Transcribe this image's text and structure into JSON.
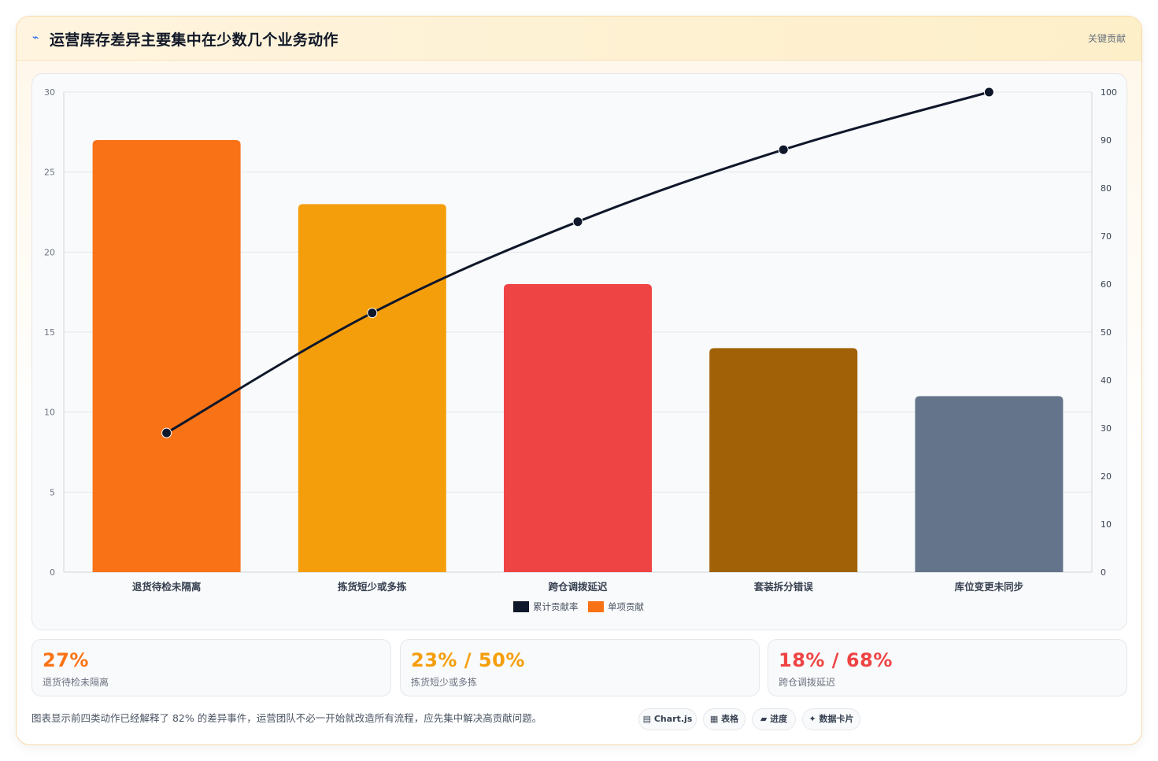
{
  "header": {
    "icon": "⌁",
    "icon_name": "spark-icon",
    "title": "运营库存差异主要集中在少数几个业务动作",
    "tag": "关键贡献"
  },
  "chart_data": {
    "type": "bar",
    "categories": [
      "退货待检未隔离",
      "拣货短少或多拣",
      "跨仓调拨延迟",
      "套装拆分错误",
      "库位变更未同步"
    ],
    "series": [
      {
        "name": "单项贡献",
        "type": "bar",
        "axis": "left",
        "values": [
          27,
          23,
          18,
          14,
          11
        ],
        "colors": [
          "#f97316",
          "#f59e0b",
          "#ef4444",
          "#a16207",
          "#64748b"
        ]
      },
      {
        "name": "累计贡献率",
        "type": "line",
        "axis": "right",
        "values": [
          29,
          54,
          73,
          88,
          100
        ],
        "color": "#0f172a"
      }
    ],
    "ylim_left": [
      0,
      30
    ],
    "yticks_left": [
      0,
      5,
      10,
      15,
      20,
      25,
      30
    ],
    "ylim_right": [
      0,
      100
    ],
    "yticks_right": [
      0,
      10,
      20,
      30,
      40,
      50,
      60,
      70,
      80,
      90,
      100
    ],
    "grid": true,
    "legend": [
      {
        "label": "累计贡献率",
        "color": "#0f172a"
      },
      {
        "label": "单项贡献",
        "color": "#f97316"
      }
    ],
    "legend_position": "bottom"
  },
  "stats": [
    {
      "value": "27%",
      "label": "退货待检未隔离",
      "color": "#f97316"
    },
    {
      "value": "23% / 50%",
      "label": "拣货短少或多拣",
      "color": "#f59e0b"
    },
    {
      "value": "18% / 68%",
      "label": "跨仓调拨延迟",
      "color": "#ef4444"
    }
  ],
  "footnote": "图表显示前四类动作已经解释了 82% 的差异事件，运营团队不必一开始就改造所有流程，应先集中解决高贡献问题。",
  "chips": [
    {
      "icon": "▤",
      "label": "Chart.js"
    },
    {
      "icon": "▦",
      "label": "表格"
    },
    {
      "icon": "▰",
      "label": "进度"
    },
    {
      "icon": "✦",
      "label": "数据卡片"
    }
  ]
}
